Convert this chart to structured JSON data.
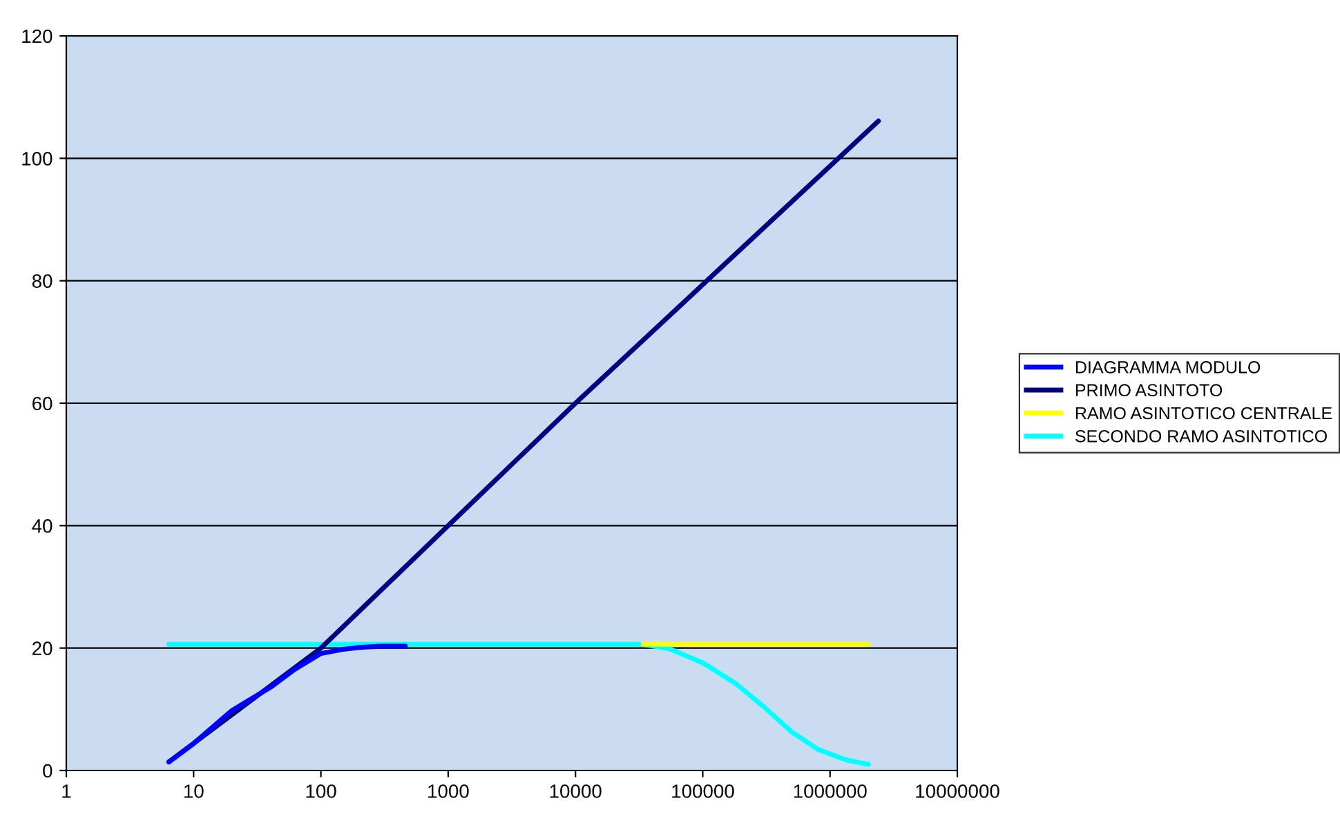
{
  "chart_data": {
    "type": "line",
    "log": "x",
    "xlim": [
      1,
      10000000
    ],
    "xticks": [
      1,
      10,
      100,
      1000,
      10000,
      100000,
      1000000,
      10000000
    ],
    "ylim": [
      0,
      120
    ],
    "yticks": [
      0,
      20,
      40,
      60,
      80,
      100,
      120
    ],
    "grid": "y",
    "legend": "right",
    "marker": "none",
    "line_style": "solid",
    "series": [
      {
        "name": "DIAGRAMMA MODULO",
        "color": "#0000ff",
        "x": [
          6.4,
          10,
          20,
          41,
          62,
          100,
          150,
          200,
          300,
          460
        ],
        "values": [
          1.4,
          4.4,
          9.8,
          13.7,
          16.5,
          19.1,
          19.8,
          20.1,
          20.3,
          20.3
        ]
      },
      {
        "name": "PRIMO ASINTOTO",
        "color": "#000080",
        "x": [
          6.4,
          100,
          10000,
          2400000
        ],
        "values": [
          1.4,
          20,
          60,
          106.1
        ]
      },
      {
        "name": "RAMO ASINTOTICO CENTRALE",
        "color": "#ffff00",
        "x": [
          34000,
          2000000
        ],
        "values": [
          20.6,
          20.6
        ]
      },
      {
        "name": "SECONDO RAMO ASINTOTICO",
        "color": "#00ffff",
        "x": [
          6.4,
          34000,
          56000,
          100000,
          182000,
          302000,
          500000,
          813000,
          1350000,
          2000000
        ],
        "values": [
          20.6,
          20.6,
          19.8,
          17.6,
          14.2,
          10.4,
          6.3,
          3.4,
          1.7,
          1.0
        ]
      }
    ]
  }
}
